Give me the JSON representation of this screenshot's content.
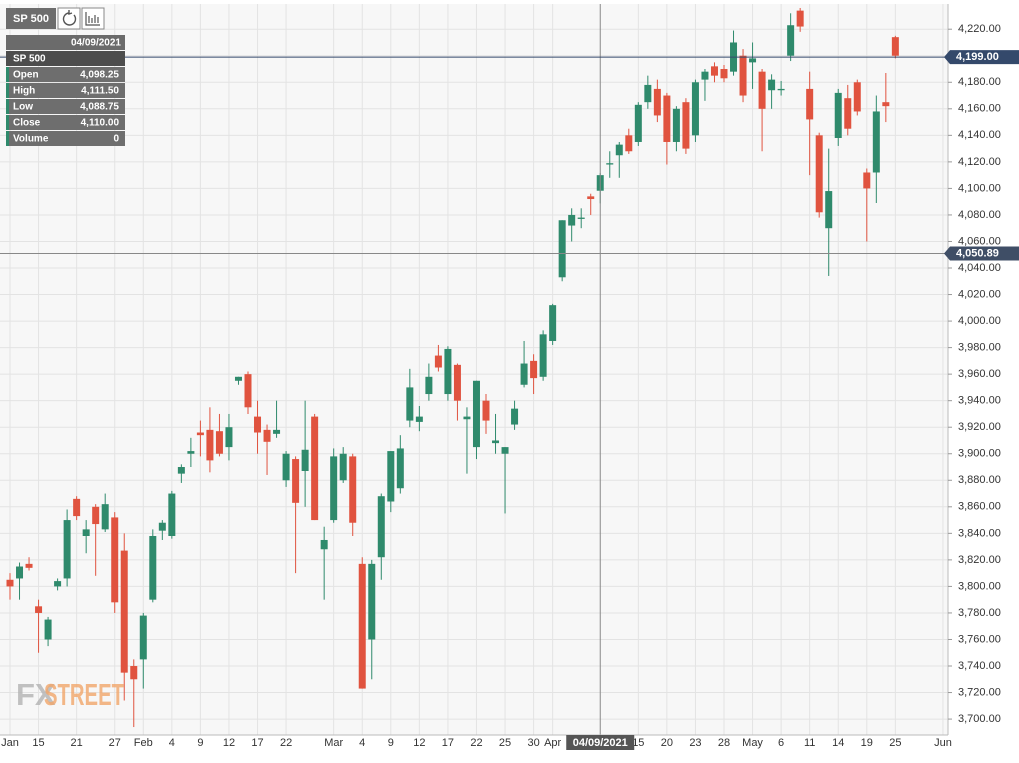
{
  "toolbar": {
    "symbol": "SP 500"
  },
  "info_panel": {
    "date": "04/09/2021",
    "symbol": "SP 500",
    "rows": [
      {
        "label": "Open",
        "value": {
          "value": 4098.25,
          "label": "4,098.25"
        }
      },
      {
        "label": "High",
        "value": {
          "value": 4111.5,
          "label": "4,111.50"
        }
      },
      {
        "label": "Low",
        "value": {
          "value": 4088.75,
          "label": "4,088.75"
        }
      },
      {
        "label": "Close",
        "value": {
          "value": 4110,
          "label": "4,110.00"
        }
      },
      {
        "label": "Volume",
        "value": 0
      }
    ]
  },
  "watermark": {
    "fx": "FX",
    "street": "STREET"
  },
  "chart_data": {
    "type": "candlestick",
    "up_color": "#2f8a6c",
    "down_color": "#e0533f",
    "grid": true,
    "categories": [
      "Jan",
      null,
      null,
      "15",
      null,
      null,
      null,
      "21",
      null,
      null,
      null,
      "27",
      null,
      null,
      "Feb",
      null,
      null,
      "4",
      null,
      null,
      "9",
      null,
      null,
      "12",
      null,
      null,
      "17",
      null,
      null,
      "22",
      null,
      null,
      null,
      null,
      "Mar",
      null,
      null,
      "4",
      null,
      null,
      "9",
      null,
      null,
      "12",
      null,
      null,
      "17",
      null,
      null,
      "22",
      null,
      null,
      "25",
      null,
      null,
      "30",
      null,
      "Apr",
      null,
      null,
      null,
      null,
      null,
      null,
      null,
      null,
      "15",
      null,
      null,
      "20",
      null,
      null,
      "23",
      null,
      null,
      "28",
      null,
      null,
      "May",
      null,
      null,
      "6",
      null,
      null,
      "11",
      null,
      null,
      "14",
      null,
      null,
      "19",
      null,
      null,
      "25",
      null,
      null,
      null,
      null,
      "Jun"
    ],
    "ohlc": [
      [
        3805,
        3810,
        3790,
        3800
      ],
      [
        3806,
        3818,
        3790,
        3815
      ],
      [
        3817,
        3822,
        3812,
        3814
      ],
      [
        3785,
        3790,
        3750,
        3780
      ],
      [
        3760,
        3777,
        3755,
        3775
      ],
      [
        3800,
        3806,
        3797,
        3804
      ],
      [
        3806,
        3858,
        3800,
        3850
      ],
      [
        3866,
        3868,
        3850,
        3853
      ],
      [
        3838,
        3850,
        3825,
        3843
      ],
      [
        3860,
        3862,
        3808,
        3847
      ],
      [
        3843,
        3870,
        3841,
        3862
      ],
      [
        3852,
        3856,
        3780,
        3788
      ],
      [
        3827,
        3840,
        3714,
        3735
      ],
      [
        3740,
        3745,
        3694,
        3730
      ],
      [
        3745,
        3780,
        3723,
        3778
      ],
      [
        3790,
        3843,
        3788,
        3838
      ],
      [
        3842,
        3850,
        3835,
        3848
      ],
      [
        3838,
        3872,
        3836,
        3870
      ],
      [
        3885,
        3892,
        3878,
        3890
      ],
      [
        3900,
        3912,
        3890,
        3902
      ],
      [
        3916,
        3925,
        3898,
        3914
      ],
      [
        3918,
        3935,
        3886,
        3895
      ],
      [
        3917,
        3930,
        3898,
        3900
      ],
      [
        3905,
        3930,
        3895,
        3920
      ],
      [
        3955,
        3958,
        3952,
        3958
      ],
      [
        3960,
        3962,
        3930,
        3935
      ],
      [
        3928,
        3940,
        3900,
        3916
      ],
      [
        3918,
        3922,
        3884,
        3909
      ],
      [
        3915,
        3940,
        3912,
        3918
      ],
      [
        3880,
        3902,
        3875,
        3900
      ],
      [
        3896,
        3898,
        3810,
        3863
      ],
      [
        3887,
        3940,
        3860,
        3903
      ],
      [
        3928,
        3930,
        3850,
        3850
      ],
      [
        3828,
        3845,
        3790,
        3835
      ],
      [
        3850,
        3904,
        3848,
        3898
      ],
      [
        3880,
        3905,
        3878,
        3900
      ],
      [
        3898,
        3900,
        3838,
        3848
      ],
      [
        3817,
        3822,
        3723,
        3723
      ],
      [
        3760,
        3820,
        3730,
        3817
      ],
      [
        3822,
        3870,
        3805,
        3868
      ],
      [
        3864,
        3902,
        3856,
        3902
      ],
      [
        3874,
        3914,
        3870,
        3904
      ],
      [
        3925,
        3964,
        3920,
        3950
      ],
      [
        3924,
        3936,
        3917,
        3928
      ],
      [
        3945,
        3968,
        3940,
        3958
      ],
      [
        3974,
        3982,
        3962,
        3965
      ],
      [
        3945,
        3981,
        3940,
        3979
      ],
      [
        3967,
        3968,
        3925,
        3940
      ],
      [
        3926,
        3935,
        3885,
        3928
      ],
      [
        3905,
        3955,
        3896,
        3955
      ],
      [
        3940,
        3945,
        3915,
        3925
      ],
      [
        3908,
        3930,
        3900,
        3910
      ],
      [
        3900,
        3905,
        3855,
        3905
      ],
      [
        3922,
        3940,
        3918,
        3934
      ],
      [
        3952,
        3985,
        3950,
        3968
      ],
      [
        3970,
        3975,
        3945,
        3957
      ],
      [
        3958,
        3993,
        3955,
        3990
      ],
      [
        3985,
        4013,
        3982,
        4012
      ],
      [
        4033,
        4076,
        4030,
        4076
      ],
      [
        4072,
        4085,
        4060,
        4080
      ],
      [
        4077,
        4085,
        4070,
        4078
      ],
      [
        4094,
        4096,
        4080,
        4092
      ],
      [
        4098.25,
        4111.5,
        4088.75,
        4110
      ],
      [
        4118,
        4128,
        4108,
        4119
      ],
      [
        4125,
        4135,
        4108,
        4133
      ],
      [
        4140,
        4145,
        4126,
        4128
      ],
      [
        4135,
        4165,
        4132,
        4163
      ],
      [
        4165,
        4185,
        4160,
        4178
      ],
      [
        4175,
        4182,
        4150,
        4155
      ],
      [
        4170,
        4172,
        4118,
        4135
      ],
      [
        4135,
        4162,
        4128,
        4160
      ],
      [
        4165,
        4168,
        4126,
        4130
      ],
      [
        4140,
        4182,
        4135,
        4180
      ],
      [
        4182,
        4190,
        4166,
        4188
      ],
      [
        4192,
        4195,
        4180,
        4185
      ],
      [
        4190,
        4193,
        4180,
        4183
      ],
      [
        4188,
        4219,
        4185,
        4210
      ],
      [
        4200,
        4205,
        4165,
        4170
      ],
      [
        4195,
        4210,
        4175,
        4198
      ],
      [
        4188,
        4190,
        4128,
        4160
      ],
      [
        4174,
        4186,
        4160,
        4182
      ],
      [
        4174,
        4181,
        4170,
        4175
      ],
      [
        4200,
        4232,
        4196,
        4223
      ],
      [
        4234,
        4236,
        4218,
        4222
      ],
      [
        4175,
        4188,
        4110,
        4152
      ],
      [
        4140,
        4142,
        4078,
        4082
      ],
      [
        4070,
        4130,
        4034,
        4098
      ],
      [
        4138,
        4175,
        4132,
        4172
      ],
      [
        4168,
        4178,
        4140,
        4145
      ],
      [
        4180,
        4182,
        4155,
        4158
      ],
      [
        4112,
        4115,
        4060,
        4100
      ],
      [
        4112,
        4170,
        4089,
        4158
      ],
      [
        4165,
        4187,
        4150,
        4162
      ],
      [
        4214,
        4215,
        4198,
        4200
      ],
      null,
      null,
      null,
      null,
      null
    ],
    "ylim": [
      3688,
      4239
    ],
    "yticks": [
      {
        "value": 3700,
        "label": "3,700.00"
      },
      {
        "value": 3720,
        "label": "3,720.00"
      },
      {
        "value": 3740,
        "label": "3,740.00"
      },
      {
        "value": 3760,
        "label": "3,760.00"
      },
      {
        "value": 3780,
        "label": "3,780.00"
      },
      {
        "value": 3800,
        "label": "3,800.00"
      },
      {
        "value": 3820,
        "label": "3,820.00"
      },
      {
        "value": 3840,
        "label": "3,840.00"
      },
      {
        "value": 3860,
        "label": "3,860.00"
      },
      {
        "value": 3880,
        "label": "3,880.00"
      },
      {
        "value": 3900,
        "label": "3,900.00"
      },
      {
        "value": 3920,
        "label": "3,920.00"
      },
      {
        "value": 3940,
        "label": "3,940.00"
      },
      {
        "value": 3960,
        "label": "3,960.00"
      },
      {
        "value": 3980,
        "label": "3,980.00"
      },
      {
        "value": 4000,
        "label": "4,000.00"
      },
      {
        "value": 4020,
        "label": "4,020.00"
      },
      {
        "value": 4040,
        "label": "4,040.00"
      },
      {
        "value": 4060,
        "label": "4,060.00"
      },
      {
        "value": 4080,
        "label": "4,080.00"
      },
      {
        "value": 4100,
        "label": "4,100.00"
      },
      {
        "value": 4120,
        "label": "4,120.00"
      },
      {
        "value": 4140,
        "label": "4,140.00"
      },
      {
        "value": 4160,
        "label": "4,160.00"
      },
      {
        "value": 4180,
        "label": "4,180.00"
      },
      {
        "value": 4200,
        "label": "4,200.00"
      },
      {
        "value": 4220,
        "label": "4,220.00"
      }
    ],
    "price_lines": [
      {
        "value": 4199,
        "label": "4,199.00",
        "color": "#34496b"
      },
      {
        "value": 4050.89,
        "label": "4,050.89",
        "color": "#3f4e66"
      }
    ]
  }
}
